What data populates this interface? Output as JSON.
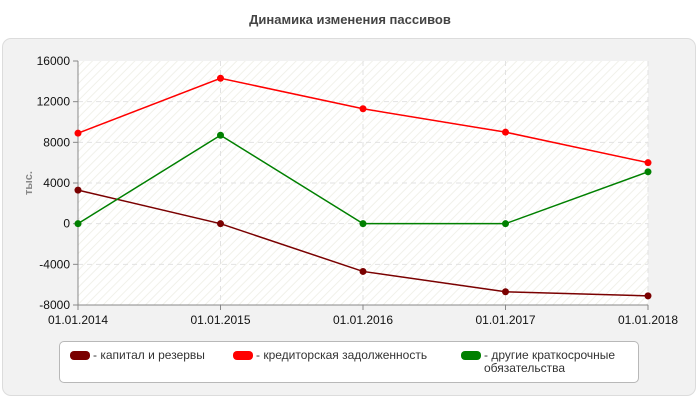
{
  "chart_data": {
    "type": "line",
    "title": "Динамика изменения пассивов",
    "ylabel": "тыс.",
    "xlabel": "",
    "categories": [
      "01.01.2014",
      "01.01.2015",
      "01.01.2016",
      "01.01.2017",
      "01.01.2018"
    ],
    "ylim": [
      -8000,
      16000
    ],
    "yticks": [
      "16000",
      "12000",
      "8000",
      "4000",
      "0",
      "-4000",
      "-8000"
    ],
    "grid": true,
    "legend_position": "bottom",
    "series": [
      {
        "name": "- капитал и резервы",
        "color": "#7a0000",
        "values": [
          3300,
          0,
          -4700,
          -6700,
          -7100
        ]
      },
      {
        "name": "- кредиторская задолженность",
        "color": "#ff0000",
        "values": [
          8900,
          14300,
          11300,
          9000,
          6000
        ]
      },
      {
        "name": "- другие краткосрочные обязательства",
        "color": "#008000",
        "values": [
          0,
          8700,
          0,
          0,
          5100
        ]
      }
    ]
  }
}
